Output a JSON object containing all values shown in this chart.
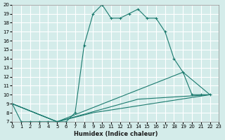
{
  "xlabel": "Humidex (Indice chaleur)",
  "background_color": "#d4ecea",
  "grid_color": "#ffffff",
  "line_color": "#1a7a6e",
  "xlim": [
    0,
    23
  ],
  "ylim": [
    7,
    20
  ],
  "xticks": [
    0,
    1,
    2,
    3,
    4,
    5,
    6,
    7,
    8,
    9,
    10,
    11,
    12,
    13,
    14,
    15,
    16,
    17,
    18,
    19,
    20,
    21,
    22,
    23
  ],
  "yticks": [
    7,
    8,
    9,
    10,
    11,
    12,
    13,
    14,
    15,
    16,
    17,
    18,
    19,
    20
  ],
  "main_x": [
    0,
    1,
    2,
    3,
    4,
    5,
    6,
    7,
    8,
    9,
    10,
    11,
    12,
    13,
    14,
    15,
    16,
    17,
    18,
    19,
    20,
    21,
    22
  ],
  "main_y": [
    9,
    7,
    7,
    7,
    7,
    7,
    7,
    8,
    15.5,
    19,
    20,
    18.5,
    18.5,
    19,
    19.5,
    18.5,
    18.5,
    17,
    14,
    12.5,
    10,
    10,
    10
  ],
  "fan_lines": [
    {
      "x": [
        0,
        5,
        9,
        22
      ],
      "y": [
        9,
        7,
        8,
        10
      ]
    },
    {
      "x": [
        0,
        5,
        14,
        22
      ],
      "y": [
        9,
        7,
        9.5,
        10
      ]
    },
    {
      "x": [
        0,
        5,
        19,
        22
      ],
      "y": [
        9,
        7,
        12.5,
        10
      ]
    }
  ]
}
